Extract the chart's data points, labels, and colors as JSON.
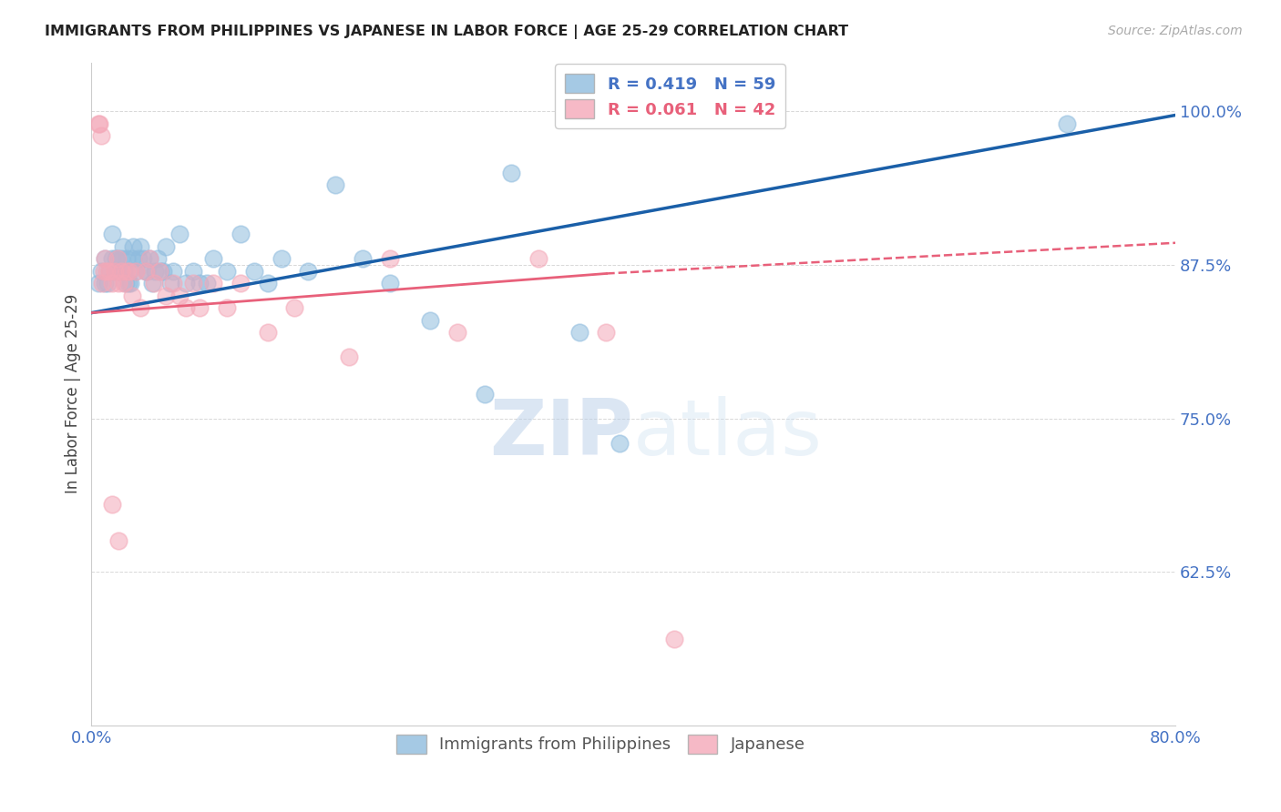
{
  "title": "IMMIGRANTS FROM PHILIPPINES VS JAPANESE IN LABOR FORCE | AGE 25-29 CORRELATION CHART",
  "source": "Source: ZipAtlas.com",
  "ylabel": "In Labor Force | Age 25-29",
  "xlim": [
    0.0,
    0.8
  ],
  "ylim": [
    0.5,
    1.04
  ],
  "yticks": [
    0.625,
    0.75,
    0.875,
    1.0
  ],
  "ytick_labels": [
    "62.5%",
    "75.0%",
    "87.5%",
    "100.0%"
  ],
  "xticks": [
    0.0,
    0.1,
    0.2,
    0.3,
    0.4,
    0.5,
    0.6,
    0.7,
    0.8
  ],
  "xtick_labels": [
    "0.0%",
    "",
    "",
    "",
    "",
    "",
    "",
    "",
    "80.0%"
  ],
  "legend_r_blue": "R = 0.419",
  "legend_n_blue": "N = 59",
  "legend_r_pink": "R = 0.061",
  "legend_n_pink": "N = 42",
  "blue_color": "#8fbcde",
  "pink_color": "#f4a8b8",
  "blue_line_color": "#1a5fa8",
  "pink_line_color": "#e8607a",
  "axis_color": "#4472c4",
  "grid_color": "#d8d8d8",
  "watermark_zip": "ZIP",
  "watermark_atlas": "atlas",
  "blue_x": [
    0.005,
    0.007,
    0.01,
    0.01,
    0.012,
    0.013,
    0.015,
    0.015,
    0.017,
    0.018,
    0.019,
    0.02,
    0.021,
    0.022,
    0.023,
    0.024,
    0.025,
    0.026,
    0.027,
    0.028,
    0.029,
    0.03,
    0.031,
    0.033,
    0.035,
    0.036,
    0.038,
    0.04,
    0.041,
    0.043,
    0.045,
    0.047,
    0.049,
    0.051,
    0.053,
    0.055,
    0.058,
    0.06,
    0.065,
    0.07,
    0.075,
    0.08,
    0.085,
    0.09,
    0.1,
    0.11,
    0.12,
    0.13,
    0.14,
    0.16,
    0.18,
    0.2,
    0.22,
    0.25,
    0.29,
    0.31,
    0.36,
    0.39,
    0.72
  ],
  "blue_y": [
    0.86,
    0.87,
    0.88,
    0.86,
    0.86,
    0.87,
    0.88,
    0.9,
    0.87,
    0.88,
    0.88,
    0.87,
    0.87,
    0.88,
    0.89,
    0.87,
    0.86,
    0.88,
    0.86,
    0.87,
    0.86,
    0.88,
    0.89,
    0.87,
    0.88,
    0.89,
    0.88,
    0.87,
    0.87,
    0.88,
    0.86,
    0.87,
    0.88,
    0.87,
    0.87,
    0.89,
    0.86,
    0.87,
    0.9,
    0.86,
    0.87,
    0.86,
    0.86,
    0.88,
    0.87,
    0.9,
    0.87,
    0.86,
    0.88,
    0.87,
    0.94,
    0.88,
    0.86,
    0.83,
    0.77,
    0.95,
    0.82,
    0.73,
    0.99
  ],
  "pink_x": [
    0.005,
    0.006,
    0.007,
    0.008,
    0.009,
    0.01,
    0.011,
    0.013,
    0.015,
    0.017,
    0.019,
    0.02,
    0.022,
    0.024,
    0.026,
    0.028,
    0.03,
    0.033,
    0.036,
    0.04,
    0.043,
    0.046,
    0.05,
    0.055,
    0.06,
    0.065,
    0.07,
    0.075,
    0.08,
    0.09,
    0.1,
    0.11,
    0.13,
    0.15,
    0.19,
    0.22,
    0.27,
    0.33,
    0.38,
    0.43,
    0.015,
    0.02
  ],
  "pink_y": [
    0.99,
    0.99,
    0.98,
    0.86,
    0.87,
    0.88,
    0.87,
    0.87,
    0.86,
    0.87,
    0.88,
    0.86,
    0.87,
    0.86,
    0.87,
    0.87,
    0.85,
    0.87,
    0.84,
    0.87,
    0.88,
    0.86,
    0.87,
    0.85,
    0.86,
    0.85,
    0.84,
    0.86,
    0.84,
    0.86,
    0.84,
    0.86,
    0.82,
    0.84,
    0.8,
    0.88,
    0.82,
    0.88,
    0.82,
    0.57,
    0.68,
    0.65
  ],
  "blue_trendline": [
    0.836,
    0.997
  ],
  "pink_trendline_solid": [
    0.836,
    0.868
  ],
  "pink_trendline_dashed": [
    0.868,
    0.893
  ]
}
